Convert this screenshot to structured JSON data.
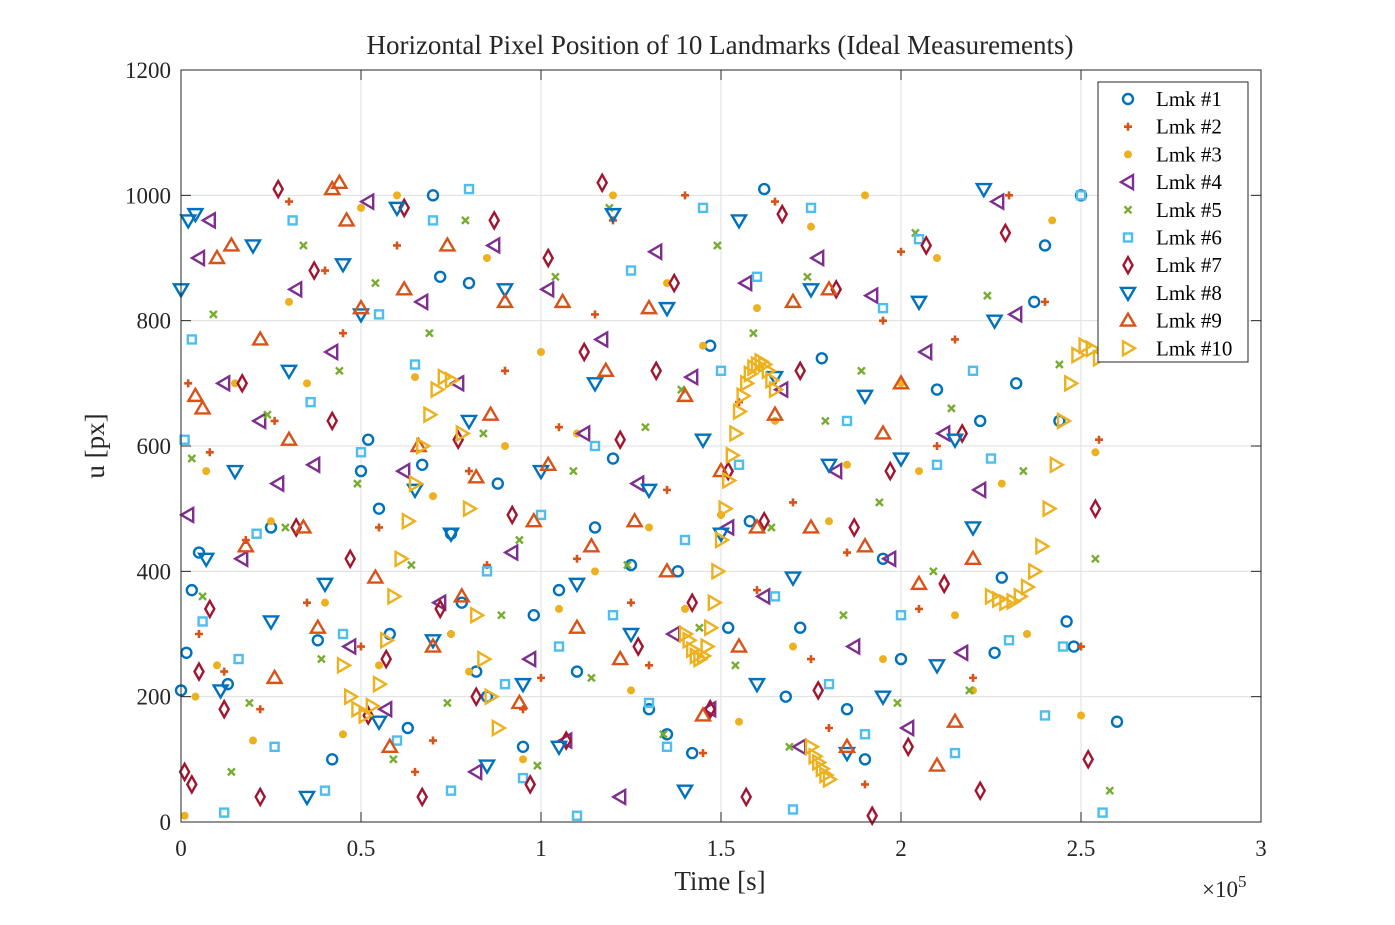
{
  "chart_data": {
    "type": "scatter",
    "title": "Horizontal Pixel Position of 10 Landmarks (Ideal Measurements)",
    "xlabel": "Time [s]",
    "ylabel": "u [px]",
    "x_exponent_label": "×10",
    "x_exponent_power": "5",
    "xlim": [
      0,
      300000
    ],
    "ylim": [
      0,
      1200
    ],
    "x_ticks": [
      0,
      50000,
      100000,
      150000,
      200000,
      250000,
      300000
    ],
    "x_tick_labels": [
      "0",
      "0.5",
      "1",
      "1.5",
      "2",
      "2.5",
      "3"
    ],
    "y_ticks": [
      0,
      200,
      400,
      600,
      800,
      1000,
      1200
    ],
    "y_tick_labels": [
      "0",
      "200",
      "400",
      "600",
      "800",
      "1000",
      "1200"
    ],
    "grid": true,
    "legend_position": "top-right",
    "series": [
      {
        "name": "Lmk #1",
        "marker": "circle",
        "color": "#0072BD",
        "x": [
          0,
          1500,
          3000,
          5000,
          13000,
          25000,
          38000,
          42000,
          50000,
          52000,
          55000,
          58000,
          63000,
          67000,
          70000,
          72000,
          75000,
          78000,
          80000,
          82000,
          85000,
          88000,
          95000,
          98000,
          105000,
          110000,
          115000,
          120000,
          125000,
          130000,
          135000,
          138000,
          142000,
          147000,
          152000,
          158000,
          162000,
          168000,
          172000,
          178000,
          185000,
          190000,
          195000,
          200000,
          210000,
          222000,
          226000,
          228000,
          232000,
          237000,
          240000,
          244000,
          246000,
          248000,
          250000,
          260000
        ],
        "y": [
          210,
          270,
          370,
          430,
          220,
          470,
          290,
          100,
          560,
          610,
          500,
          300,
          150,
          570,
          1000,
          870,
          460,
          350,
          860,
          240,
          200,
          540,
          120,
          330,
          370,
          240,
          470,
          580,
          410,
          180,
          140,
          400,
          110,
          760,
          310,
          480,
          1010,
          200,
          310,
          740,
          180,
          100,
          420,
          260,
          690,
          640,
          270,
          390,
          700,
          830,
          920,
          640,
          320,
          280,
          1000,
          160
        ]
      },
      {
        "name": "Lmk #2",
        "marker": "plus",
        "color": "#D95319",
        "x": [
          2000,
          5000,
          8000,
          12000,
          18000,
          22000,
          26000,
          30000,
          35000,
          40000,
          45000,
          50000,
          55000,
          60000,
          65000,
          70000,
          75000,
          80000,
          85000,
          90000,
          95000,
          100000,
          105000,
          110000,
          115000,
          120000,
          125000,
          130000,
          135000,
          140000,
          145000,
          150000,
          155000,
          160000,
          165000,
          170000,
          175000,
          180000,
          185000,
          190000,
          195000,
          200000,
          205000,
          210000,
          215000,
          220000,
          230000,
          240000,
          250000,
          255000
        ],
        "y": [
          700,
          300,
          590,
          240,
          450,
          180,
          640,
          990,
          350,
          880,
          780,
          280,
          470,
          920,
          80,
          130,
          300,
          560,
          410,
          720,
          180,
          230,
          630,
          420,
          810,
          960,
          350,
          250,
          530,
          1000,
          110,
          490,
          670,
          370,
          990,
          510,
          260,
          150,
          430,
          60,
          800,
          910,
          340,
          600,
          770,
          230,
          1000,
          830,
          280,
          610
        ]
      },
      {
        "name": "Lmk #3",
        "marker": "dot",
        "color": "#EDB120",
        "x": [
          1000,
          4000,
          7000,
          10000,
          15000,
          20000,
          25000,
          30000,
          35000,
          40000,
          45000,
          50000,
          55000,
          60000,
          65000,
          70000,
          75000,
          80000,
          85000,
          90000,
          95000,
          100000,
          105000,
          110000,
          115000,
          120000,
          125000,
          130000,
          135000,
          140000,
          145000,
          150000,
          155000,
          160000,
          165000,
          170000,
          175000,
          180000,
          185000,
          190000,
          195000,
          200000,
          205000,
          210000,
          215000,
          220000,
          228000,
          235000,
          242000,
          250000,
          254000
        ],
        "y": [
          10,
          200,
          560,
          250,
          700,
          130,
          480,
          830,
          700,
          350,
          140,
          980,
          250,
          1000,
          710,
          520,
          300,
          240,
          900,
          600,
          100,
          750,
          340,
          620,
          400,
          1000,
          210,
          470,
          860,
          340,
          760,
          490,
          160,
          820,
          640,
          280,
          950,
          480,
          570,
          1000,
          260,
          700,
          560,
          900,
          330,
          210,
          540,
          300,
          960,
          170,
          590
        ]
      },
      {
        "name": "Lmk #4",
        "marker": "triangle-left",
        "color": "#7E2F8E",
        "x": [
          2000,
          5000,
          8000,
          12000,
          17000,
          22000,
          27000,
          32000,
          37000,
          42000,
          47000,
          52000,
          57000,
          62000,
          67000,
          72000,
          77000,
          82000,
          87000,
          92000,
          97000,
          102000,
          107000,
          112000,
          117000,
          122000,
          127000,
          132000,
          137000,
          142000,
          147000,
          152000,
          157000,
          162000,
          167000,
          172000,
          177000,
          182000,
          187000,
          192000,
          197000,
          202000,
          207000,
          212000,
          217000,
          222000,
          227000,
          232000
        ],
        "y": [
          490,
          900,
          960,
          700,
          420,
          640,
          540,
          850,
          570,
          750,
          280,
          990,
          180,
          560,
          830,
          350,
          700,
          80,
          920,
          430,
          260,
          850,
          130,
          620,
          770,
          40,
          540,
          910,
          300,
          710,
          180,
          470,
          860,
          360,
          690,
          120,
          900,
          560,
          280,
          840,
          420,
          150,
          750,
          620,
          270,
          530,
          990,
          810
        ]
      },
      {
        "name": "Lmk #5",
        "marker": "x",
        "color": "#77AC30",
        "x": [
          3000,
          6000,
          9000,
          14000,
          19000,
          24000,
          29000,
          34000,
          39000,
          44000,
          49000,
          54000,
          59000,
          64000,
          69000,
          74000,
          79000,
          84000,
          89000,
          94000,
          99000,
          104000,
          109000,
          114000,
          119000,
          124000,
          129000,
          134000,
          139000,
          144000,
          149000,
          154000,
          159000,
          164000,
          169000,
          174000,
          179000,
          184000,
          189000,
          194000,
          199000,
          204000,
          209000,
          214000,
          219000,
          224000,
          234000,
          244000,
          254000,
          258000
        ],
        "y": [
          580,
          360,
          810,
          80,
          190,
          650,
          470,
          920,
          260,
          720,
          540,
          860,
          100,
          410,
          780,
          190,
          960,
          620,
          330,
          450,
          90,
          870,
          560,
          230,
          980,
          410,
          630,
          140,
          690,
          310,
          920,
          250,
          780,
          470,
          120,
          870,
          640,
          330,
          720,
          510,
          190,
          940,
          400,
          660,
          210,
          840,
          560,
          730,
          420,
          50
        ]
      },
      {
        "name": "Lmk #6",
        "marker": "square",
        "color": "#4DBEEE",
        "x": [
          1000,
          3000,
          6000,
          12000,
          16000,
          21000,
          26000,
          31000,
          36000,
          40000,
          45000,
          50000,
          55000,
          60000,
          65000,
          70000,
          75000,
          80000,
          85000,
          90000,
          95000,
          100000,
          105000,
          110000,
          115000,
          120000,
          125000,
          130000,
          135000,
          140000,
          145000,
          150000,
          155000,
          160000,
          165000,
          170000,
          175000,
          180000,
          185000,
          190000,
          195000,
          200000,
          205000,
          210000,
          215000,
          220000,
          225000,
          230000,
          240000,
          245000,
          250000,
          256000
        ],
        "y": [
          610,
          770,
          320,
          15,
          260,
          460,
          120,
          960,
          670,
          50,
          300,
          590,
          810,
          130,
          730,
          960,
          50,
          1010,
          400,
          220,
          70,
          490,
          280,
          10,
          600,
          330,
          880,
          190,
          120,
          450,
          980,
          720,
          570,
          870,
          360,
          20,
          980,
          220,
          640,
          140,
          820,
          330,
          930,
          570,
          110,
          720,
          580,
          290,
          170,
          280,
          1000,
          15
        ]
      },
      {
        "name": "Lmk #7",
        "marker": "diamond",
        "color": "#A2142F",
        "x": [
          1000,
          3000,
          5000,
          8000,
          12000,
          17000,
          22000,
          27000,
          32000,
          37000,
          42000,
          47000,
          52000,
          57000,
          62000,
          67000,
          72000,
          77000,
          82000,
          87000,
          92000,
          97000,
          102000,
          107000,
          112000,
          117000,
          122000,
          127000,
          132000,
          137000,
          142000,
          147000,
          152000,
          157000,
          162000,
          167000,
          172000,
          177000,
          182000,
          187000,
          192000,
          197000,
          202000,
          207000,
          212000,
          217000,
          222000,
          229000,
          252000,
          254000
        ],
        "y": [
          80,
          60,
          240,
          340,
          180,
          700,
          40,
          1010,
          470,
          880,
          640,
          420,
          170,
          260,
          980,
          40,
          340,
          610,
          200,
          960,
          490,
          60,
          900,
          130,
          750,
          1020,
          610,
          280,
          720,
          860,
          350,
          180,
          560,
          40,
          480,
          970,
          720,
          210,
          850,
          470,
          10,
          560,
          120,
          920,
          380,
          620,
          50,
          940,
          100,
          500
        ]
      },
      {
        "name": "Lmk #8",
        "marker": "triangle-down",
        "color": "#0072BD",
        "x": [
          0,
          2000,
          4000,
          7000,
          11000,
          15000,
          20000,
          25000,
          30000,
          35000,
          40000,
          45000,
          50000,
          55000,
          60000,
          65000,
          70000,
          75000,
          80000,
          85000,
          90000,
          95000,
          100000,
          105000,
          110000,
          115000,
          120000,
          125000,
          130000,
          135000,
          140000,
          145000,
          150000,
          155000,
          160000,
          165000,
          170000,
          175000,
          180000,
          185000,
          190000,
          195000,
          200000,
          205000,
          210000,
          215000,
          220000,
          223000,
          226000
        ],
        "y": [
          850,
          960,
          970,
          420,
          210,
          560,
          920,
          320,
          720,
          40,
          380,
          890,
          810,
          160,
          980,
          530,
          290,
          460,
          640,
          90,
          850,
          220,
          560,
          120,
          380,
          700,
          970,
          300,
          530,
          820,
          50,
          610,
          460,
          960,
          220,
          710,
          390,
          850,
          570,
          110,
          680,
          200,
          580,
          830,
          250,
          610,
          470,
          1010,
          800
        ]
      },
      {
        "name": "Lmk #9",
        "marker": "triangle-up",
        "color": "#D95319",
        "x": [
          4000,
          6000,
          10000,
          14000,
          18000,
          22000,
          26000,
          30000,
          34000,
          38000,
          42000,
          44000,
          46000,
          50000,
          54000,
          58000,
          62000,
          66000,
          70000,
          74000,
          78000,
          82000,
          86000,
          90000,
          94000,
          98000,
          102000,
          106000,
          110000,
          114000,
          118000,
          122000,
          126000,
          130000,
          135000,
          140000,
          145000,
          150000,
          155000,
          160000,
          165000,
          170000,
          175000,
          180000,
          185000,
          190000,
          195000,
          200000,
          205000,
          210000,
          215000,
          220000
        ],
        "y": [
          680,
          660,
          900,
          920,
          440,
          770,
          230,
          610,
          470,
          310,
          1010,
          1020,
          960,
          820,
          390,
          120,
          850,
          600,
          280,
          920,
          360,
          550,
          650,
          830,
          190,
          480,
          570,
          830,
          310,
          440,
          720,
          260,
          480,
          820,
          400,
          680,
          170,
          560,
          280,
          470,
          650,
          830,
          470,
          850,
          120,
          440,
          620,
          700,
          380,
          90,
          160,
          420
        ]
      },
      {
        "name": "Lmk #10",
        "marker": "triangle-right",
        "color": "#EDB120",
        "x": [
          45000,
          47000,
          49000,
          51000,
          53000,
          55000,
          57000,
          59000,
          61000,
          63000,
          65000,
          67000,
          69000,
          71000,
          73000,
          75000,
          78000,
          80000,
          82000,
          84000,
          86000,
          88000,
          140000,
          141000,
          142000,
          143000,
          144000,
          145000,
          146000,
          147000,
          148000,
          149000,
          150000,
          151000,
          152000,
          153000,
          154000,
          155000,
          156000,
          157000,
          158000,
          159000,
          160000,
          161000,
          162000,
          163000,
          164000,
          165000,
          175000,
          176000,
          177000,
          178000,
          179000,
          180000,
          225000,
          227000,
          229000,
          231000,
          233000,
          235000,
          237000,
          239000,
          241000,
          243000,
          245000,
          247000,
          249000,
          251000,
          253000,
          255000
        ],
        "y": [
          250,
          200,
          180,
          170,
          185,
          220,
          290,
          360,
          420,
          480,
          540,
          600,
          650,
          690,
          710,
          705,
          620,
          500,
          330,
          260,
          200,
          150,
          300,
          290,
          275,
          265,
          260,
          265,
          280,
          310,
          350,
          400,
          450,
          500,
          545,
          585,
          620,
          655,
          680,
          700,
          715,
          725,
          730,
          735,
          730,
          720,
          705,
          690,
          120,
          105,
          95,
          85,
          75,
          68,
          360,
          355,
          350,
          352,
          360,
          375,
          400,
          440,
          500,
          570,
          640,
          700,
          745,
          760,
          755,
          740
        ]
      }
    ]
  },
  "legend": {
    "items": [
      "Lmk #1",
      "Lmk #2",
      "Lmk #3",
      "Lmk #4",
      "Lmk #5",
      "Lmk #6",
      "Lmk #7",
      "Lmk #8",
      "Lmk #9",
      "Lmk #10"
    ]
  }
}
